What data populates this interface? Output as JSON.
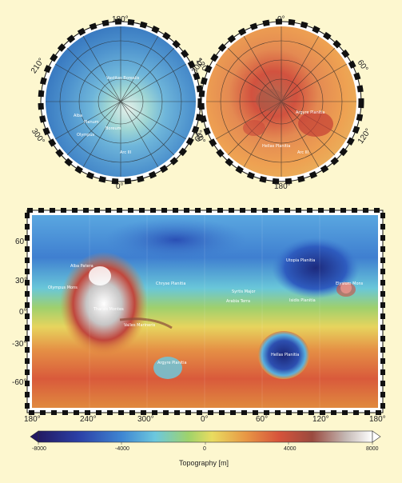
{
  "north_polar": {
    "top_label": "180°",
    "bottom_label": "0°",
    "left_upper": "210°",
    "left_lower": "300°",
    "right_upper": "120°",
    "right_lower": "60°",
    "names": [
      "Vastitas Borealis",
      "Planum",
      "Boreum",
      "Olympus",
      "Alba",
      "Arc III"
    ]
  },
  "south_polar": {
    "top_label": "0°",
    "bottom_label": "180°",
    "left_upper": "300°",
    "left_lower": "240°",
    "right_upper": "60°",
    "right_lower": "120°",
    "names": [
      "Argyre Planitia",
      "Hellas Planitia",
      "Arc III"
    ]
  },
  "main_map": {
    "y_labels": [
      "60°",
      "30°",
      "0°",
      "-30°",
      "-60°"
    ],
    "x_labels": [
      "180°",
      "240°",
      "300°",
      "0°",
      "60°",
      "120°",
      "180°"
    ],
    "names": [
      "Olympus Mons",
      "Tharsis Montes",
      "Alba Patera",
      "Valles Marineris",
      "Chryse Planitia",
      "Arabia Terra",
      "Utopia Planitia",
      "Elysium Mons",
      "Syrtis Major",
      "Hellas Planitia",
      "Argyre Planitia",
      "Isidis Planitia"
    ]
  },
  "colorbar": {
    "ticks": [
      "-8000",
      "-4000",
      "0",
      "4000",
      "8000"
    ],
    "title": "Topography [m]"
  },
  "colors": {
    "background": "#fdf7cf",
    "deep_blue": "#1c2a7a",
    "blue": "#3f8fd4",
    "cyan": "#6fd0e0",
    "green": "#9fd36a",
    "yellow": "#f1d460",
    "orange": "#e78a3e",
    "red": "#c8423a",
    "brown": "#8a4a3a",
    "white": "#ffffff"
  }
}
